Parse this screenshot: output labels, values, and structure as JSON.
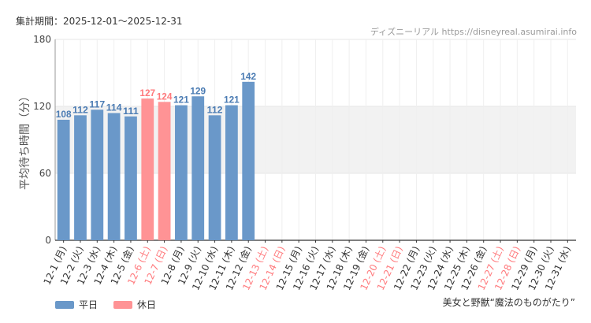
{
  "header": {
    "period_label": "集計期間：2025-12-01～2025-12-31",
    "source_label": "ディズニーリアル https://disneyreal.asumirai.info",
    "attraction": "美女と野獣“魔法のものがたり”"
  },
  "colors": {
    "weekday": "#6a98c9",
    "holiday": "#ff9395",
    "holiday_text": "#ff7a7d",
    "band": "#f2f2f2",
    "grid": "#e6e6e6"
  },
  "legend": [
    {
      "label": "平日",
      "kind": "weekday"
    },
    {
      "label": "休日",
      "kind": "holiday"
    }
  ],
  "chart_data": {
    "type": "bar",
    "ylabel": "平均待ち時間（分）",
    "ylim": [
      0,
      180
    ],
    "yticks": [
      0,
      60,
      120,
      180
    ],
    "shaded_band": [
      60,
      120
    ],
    "categories": [
      "12-1 (月)",
      "12-2 (火)",
      "12-3 (水)",
      "12-4 (木)",
      "12-5 (金)",
      "12-6 (土)",
      "12-7 (日)",
      "12-8 (月)",
      "12-9 (火)",
      "12-10 (水)",
      "12-11 (木)",
      "12-12 (金)",
      "12-13 (土)",
      "12-14 (日)",
      "12-15 (月)",
      "12-16 (火)",
      "12-17 (水)",
      "12-18 (木)",
      "12-19 (金)",
      "12-20 (土)",
      "12-21 (日)",
      "12-22 (月)",
      "12-23 (火)",
      "12-24 (水)",
      "12-25 (木)",
      "12-26 (金)",
      "12-27 (土)",
      "12-28 (日)",
      "12-29 (月)",
      "12-30 (火)",
      "12-31 (水)"
    ],
    "holiday": [
      false,
      false,
      false,
      false,
      false,
      true,
      true,
      false,
      false,
      false,
      false,
      false,
      true,
      true,
      false,
      false,
      false,
      false,
      false,
      true,
      true,
      false,
      false,
      false,
      false,
      false,
      true,
      true,
      false,
      false,
      false
    ],
    "values": [
      108,
      112,
      117,
      114,
      111,
      127,
      124,
      121,
      129,
      112,
      121,
      142,
      null,
      null,
      null,
      null,
      null,
      null,
      null,
      null,
      null,
      null,
      null,
      null,
      null,
      null,
      null,
      null,
      null,
      null,
      null
    ]
  }
}
